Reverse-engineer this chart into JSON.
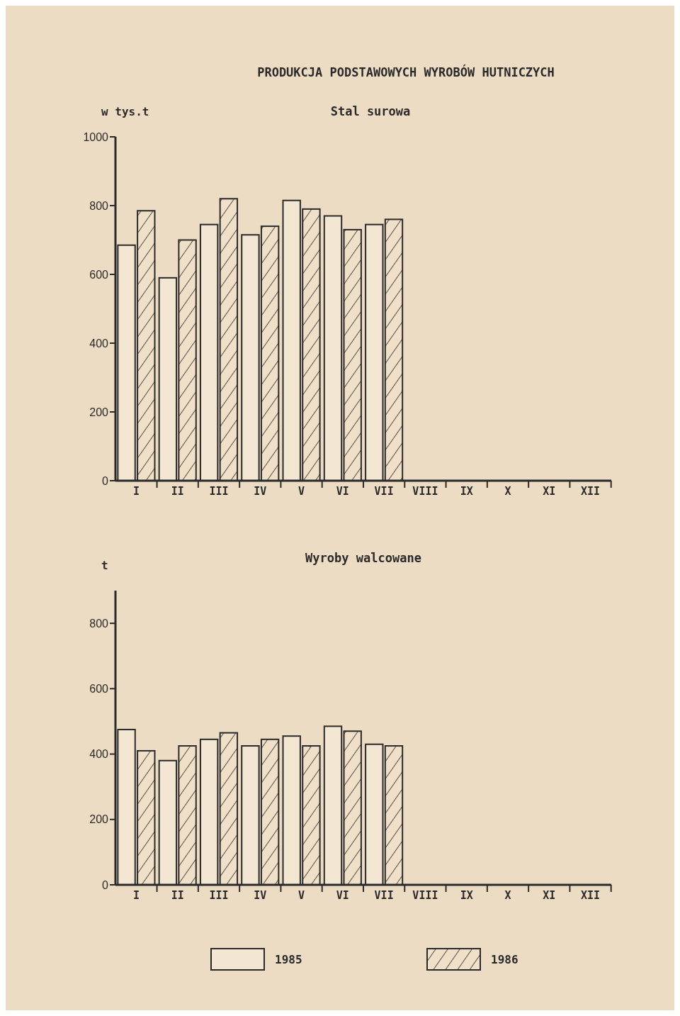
{
  "chart_data": [
    {
      "type": "bar",
      "title": "PRODUKCJA PODSTAWOWYCH WYROBÓW HUTNICZYCH",
      "subtitle": "Stal surowa",
      "ylabel": "w tys.t",
      "categories": [
        "I",
        "II",
        "III",
        "IV",
        "V",
        "VI",
        "VII",
        "VIII",
        "IX",
        "X",
        "XI",
        "XII"
      ],
      "series": [
        {
          "color": "#f3e6d2",
          "values": [
            685,
            590,
            745,
            715,
            815,
            770,
            745,
            null,
            null,
            null,
            null,
            null
          ]
        },
        {
          "color": "#2a2a2a",
          "values": [
            785,
            700,
            820,
            740,
            790,
            730,
            760,
            null,
            null,
            null,
            null,
            null
          ]
        }
      ],
      "ylim": [
        0,
        1000
      ],
      "yticks": [
        0,
        200,
        400,
        600,
        800,
        1000
      ],
      "legend": false
    },
    {
      "type": "bar",
      "title": "Wyroby walcowane",
      "ylabel": "t",
      "categories": [
        "I",
        "II",
        "III",
        "IV",
        "V",
        "VI",
        "VII",
        "VIII",
        "IX",
        "X",
        "XI",
        "XII"
      ],
      "series": [
        {
          "name": "1985",
          "color": "#f3e6d2",
          "values": [
            475,
            380,
            445,
            425,
            455,
            485,
            430,
            null,
            null,
            null,
            null,
            null
          ]
        },
        {
          "name": "1986",
          "color": "#2a2a2a",
          "values": [
            410,
            425,
            465,
            445,
            425,
            470,
            425,
            null,
            null,
            null,
            null,
            null
          ]
        }
      ],
      "ylim": [
        0,
        900
      ],
      "yticks": [
        0,
        200,
        400,
        600,
        800
      ],
      "legend": "bottom"
    }
  ]
}
